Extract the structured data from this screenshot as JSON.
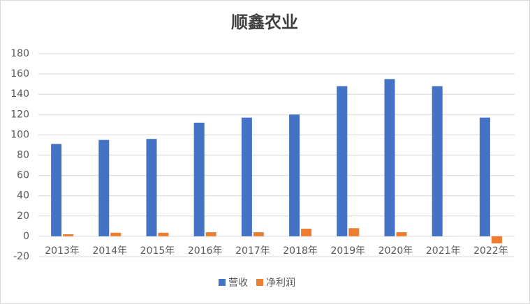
{
  "chart_data": {
    "type": "bar",
    "title": "顺鑫农业",
    "categories": [
      "2013年",
      "2014年",
      "2015年",
      "2016年",
      "2017年",
      "2018年",
      "2019年",
      "2020年",
      "2021年",
      "2022年"
    ],
    "series": [
      {
        "name": "营收",
        "color": "#4472c4",
        "values": [
          91,
          95,
          96,
          112,
          117,
          120,
          148,
          155,
          148,
          117
        ]
      },
      {
        "name": "净利润",
        "color": "#ed7d31",
        "values": [
          2,
          3.5,
          3.5,
          4,
          4,
          7.5,
          8,
          4,
          0.1,
          -7
        ]
      }
    ],
    "ylim": [
      -20,
      180
    ],
    "yticks": [
      -20,
      0,
      20,
      40,
      60,
      80,
      100,
      120,
      140,
      160,
      180
    ],
    "grid": true,
    "legend": "bottom"
  }
}
